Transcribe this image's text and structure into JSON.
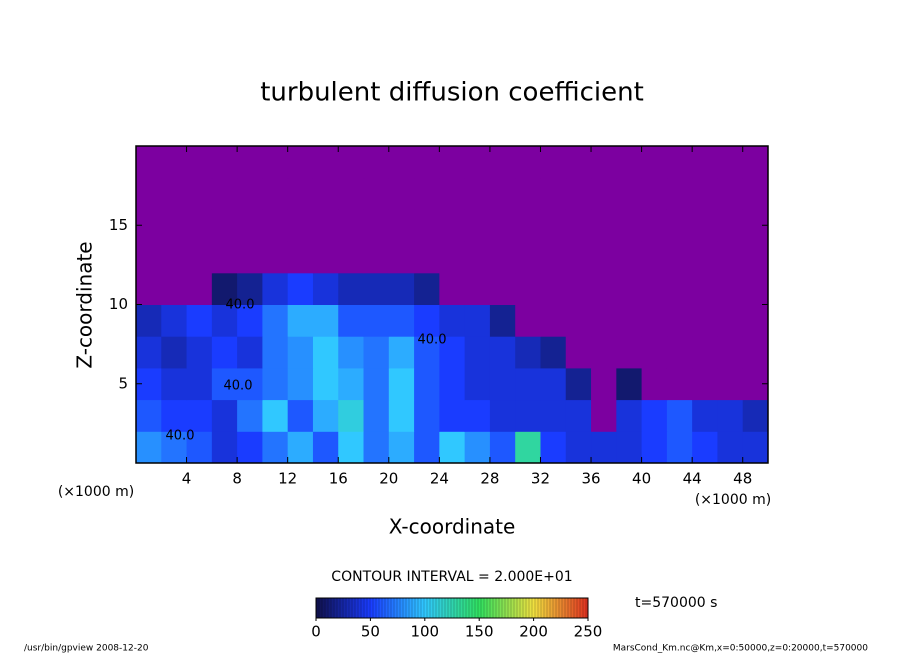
{
  "chart_data": {
    "type": "heatmap",
    "title": "turbulent diffusion coefficient",
    "xlabel": "X-coordinate",
    "ylabel": "Z-coordinate",
    "x_unit_label": "(×1000 m)",
    "xlim": [
      0,
      50
    ],
    "ylim": [
      0,
      20
    ],
    "xticks": [
      4,
      8,
      12,
      16,
      20,
      24,
      28,
      32,
      36,
      40,
      44,
      48
    ],
    "yticks": [
      5,
      10,
      15
    ],
    "x_edges": [
      0,
      2,
      4,
      6,
      8,
      10,
      12,
      14,
      16,
      18,
      20,
      22,
      24,
      26,
      28,
      30,
      32,
      34,
      36,
      38,
      40,
      42,
      44,
      46,
      48,
      50
    ],
    "z_edges": [
      0,
      2,
      4,
      6,
      8,
      10,
      12,
      14,
      16,
      18,
      20
    ],
    "values": [
      [
        80,
        70,
        60,
        40,
        50,
        70,
        90,
        60,
        100,
        70,
        90,
        60,
        100,
        80,
        60,
        130,
        50,
        40,
        40,
        40,
        50,
        60,
        50,
        40,
        40
      ],
      [
        60,
        50,
        50,
        40,
        70,
        100,
        60,
        90,
        110,
        70,
        100,
        60,
        50,
        50,
        40,
        40,
        40,
        40,
        0,
        40,
        50,
        60,
        40,
        40,
        30
      ],
      [
        50,
        40,
        40,
        60,
        60,
        70,
        80,
        100,
        90,
        70,
        100,
        60,
        50,
        40,
        40,
        40,
        40,
        20,
        0,
        10,
        0,
        0,
        0,
        0,
        0
      ],
      [
        40,
        30,
        40,
        50,
        40,
        70,
        80,
        100,
        80,
        70,
        90,
        60,
        50,
        40,
        40,
        30,
        20,
        0,
        0,
        0,
        0,
        0,
        0,
        0,
        0
      ],
      [
        30,
        40,
        50,
        40,
        50,
        70,
        90,
        90,
        60,
        60,
        60,
        50,
        40,
        40,
        20,
        0,
        0,
        0,
        0,
        0,
        0,
        0,
        0,
        0,
        0
      ],
      [
        0,
        0,
        0,
        10,
        20,
        40,
        50,
        40,
        30,
        30,
        30,
        20,
        0,
        0,
        0,
        0,
        0,
        0,
        0,
        0,
        0,
        0,
        0,
        0,
        0
      ],
      [
        0,
        0,
        0,
        0,
        0,
        0,
        0,
        0,
        0,
        0,
        0,
        0,
        0,
        0,
        0,
        0,
        0,
        0,
        0,
        0,
        0,
        0,
        0,
        0,
        0
      ],
      [
        0,
        0,
        0,
        0,
        0,
        0,
        0,
        0,
        0,
        0,
        0,
        0,
        0,
        0,
        0,
        0,
        0,
        0,
        0,
        0,
        0,
        0,
        0,
        0,
        0
      ],
      [
        0,
        0,
        0,
        0,
        0,
        0,
        0,
        0,
        0,
        0,
        0,
        0,
        0,
        0,
        0,
        0,
        0,
        0,
        0,
        0,
        0,
        0,
        0,
        0,
        0
      ],
      [
        0,
        0,
        0,
        0,
        0,
        0,
        0,
        0,
        0,
        0,
        0,
        0,
        0,
        0,
        0,
        0,
        0,
        0,
        0,
        0,
        0,
        0,
        0,
        0,
        0
      ]
    ],
    "colormap": [
      "#10104a",
      "#1a3cff",
      "#30c8ff",
      "#30e060",
      "#f0e040",
      "#e03020"
    ],
    "low_color": "#7c00a0",
    "clim": [
      0,
      250
    ],
    "cticks": [
      0,
      50,
      100,
      150,
      200,
      250
    ],
    "contour_labels": [
      "40.0",
      "40.0",
      "40.0",
      "40.0"
    ],
    "contour_interval": "CONTOUR INTERVAL = 2.000E+01",
    "time_label": "t=570000 s",
    "footer_left": "/usr/bin/gpview   2008-12-20",
    "footer_right": "MarsCond_Km.nc@Km,x=0:50000,z=0:20000,t=570000"
  }
}
